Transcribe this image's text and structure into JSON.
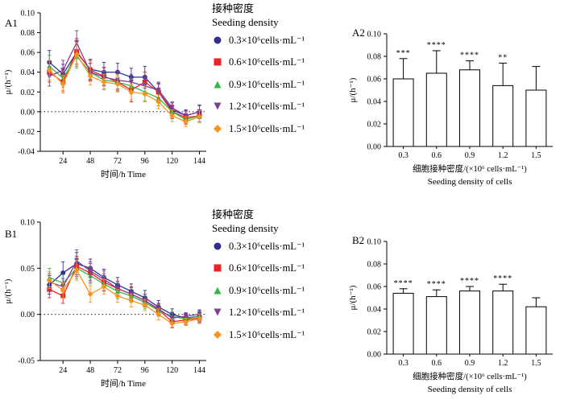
{
  "figure": {
    "background": "#ffffff",
    "legend": {
      "title_zh": "接种密度",
      "title_en": "Seeding density"
    },
    "series_meta": [
      {
        "label": "0.3×10⁶cells·mL⁻¹",
        "color": "#2e3192",
        "marker": "circle"
      },
      {
        "label": "0.6×10⁶cells·mL⁻¹",
        "color": "#ec2227",
        "marker": "square"
      },
      {
        "label": "0.9×10⁶cells·mL⁻¹",
        "color": "#3ab54a",
        "marker": "triangle-up"
      },
      {
        "label": "1.2×10⁶cells·mL⁻¹",
        "color": "#7f3f98",
        "marker": "triangle-down"
      },
      {
        "label": "1.5×10⁶cells·mL⁻¹",
        "color": "#f7941d",
        "marker": "diamond"
      }
    ]
  },
  "chart_data": [
    {
      "id": "A1",
      "type": "line",
      "panel_label": "A1",
      "xlabel": "时间/h Time",
      "ylabel": "μ/(h⁻¹)",
      "xlim": [
        4,
        150
      ],
      "ylim": [
        -0.04,
        0.1
      ],
      "xticks": [
        24,
        48,
        72,
        96,
        120,
        144
      ],
      "yticks": [
        -0.04,
        -0.02,
        0.0,
        0.02,
        0.04,
        0.06,
        0.08,
        0.1
      ],
      "zero_line": true,
      "grid": false,
      "x": [
        12,
        24,
        36,
        48,
        60,
        72,
        84,
        96,
        108,
        120,
        132,
        144
      ],
      "series": [
        {
          "name": "0.3×10⁶cells·mL⁻¹",
          "values": [
            0.05,
            0.038,
            0.06,
            0.043,
            0.04,
            0.04,
            0.035,
            0.035,
            0.02,
            0.002,
            -0.004,
            0.0
          ],
          "errors": [
            0.012,
            0.01,
            0.014,
            0.01,
            0.01,
            0.009,
            0.009,
            0.011,
            0.009,
            0.007,
            0.006,
            0.007
          ]
        },
        {
          "name": "0.6×10⁶cells·mL⁻¹",
          "values": [
            0.04,
            0.03,
            0.061,
            0.042,
            0.036,
            0.03,
            0.022,
            0.03,
            0.02,
            0.0,
            -0.006,
            -0.004
          ],
          "errors": [
            0.01,
            0.009,
            0.013,
            0.01,
            0.009,
            0.009,
            0.012,
            0.01,
            0.008,
            0.007,
            0.006,
            0.006
          ]
        },
        {
          "name": "0.9×10⁶cells·mL⁻¹",
          "values": [
            0.046,
            0.034,
            0.056,
            0.04,
            0.032,
            0.03,
            0.026,
            0.02,
            0.014,
            0.0,
            -0.008,
            -0.004
          ],
          "errors": [
            0.011,
            0.009,
            0.012,
            0.009,
            0.009,
            0.008,
            0.008,
            0.009,
            0.008,
            0.006,
            0.005,
            0.006
          ]
        },
        {
          "name": "1.2×10⁶cells·mL⁻¹",
          "values": [
            0.036,
            0.042,
            0.07,
            0.04,
            0.035,
            0.032,
            0.03,
            0.026,
            0.022,
            0.004,
            -0.004,
            0.0
          ],
          "errors": [
            0.01,
            0.01,
            0.012,
            0.009,
            0.009,
            0.009,
            0.008,
            0.009,
            0.008,
            0.006,
            0.005,
            0.006
          ]
        },
        {
          "name": "1.5×10⁶cells·mL⁻¹",
          "values": [
            0.042,
            0.028,
            0.058,
            0.036,
            0.03,
            0.028,
            0.02,
            0.018,
            0.01,
            -0.004,
            -0.01,
            -0.005
          ],
          "errors": [
            0.01,
            0.009,
            0.012,
            0.009,
            0.008,
            0.008,
            0.008,
            0.008,
            0.007,
            0.006,
            0.005,
            0.006
          ]
        }
      ]
    },
    {
      "id": "A2",
      "type": "bar",
      "panel_label": "A2",
      "xlabel_zh": "细胞接种密度/(×10⁶ cells·mL⁻¹)",
      "xlabel_en": "Seeding density of cells",
      "ylabel": "μ/(h⁻¹)",
      "ylim": [
        0,
        0.1
      ],
      "yticks": [
        0.0,
        0.02,
        0.04,
        0.06,
        0.08,
        0.1
      ],
      "categories": [
        "0.3",
        "0.6",
        "0.9",
        "1.2",
        "1.5"
      ],
      "values": [
        0.06,
        0.065,
        0.068,
        0.054,
        0.05
      ],
      "errors": [
        0.018,
        0.02,
        0.008,
        0.02,
        0.021
      ],
      "significance": [
        "***",
        "****",
        "****",
        "**",
        ""
      ],
      "bar_fill": "#ffffff",
      "bar_stroke": "#000000"
    },
    {
      "id": "B1",
      "type": "line",
      "panel_label": "B1",
      "xlabel": "时间/h Time",
      "ylabel": "μ/(h⁻¹)",
      "xlim": [
        4,
        150
      ],
      "ylim": [
        -0.05,
        0.1
      ],
      "xticks": [
        24,
        48,
        72,
        96,
        120,
        144
      ],
      "yticks": [
        -0.05,
        0.0,
        0.05,
        0.1
      ],
      "zero_line": true,
      "grid": false,
      "x": [
        12,
        24,
        36,
        48,
        60,
        72,
        84,
        96,
        108,
        120,
        132,
        144
      ],
      "series": [
        {
          "name": "0.3×10⁶cells·mL⁻¹",
          "values": [
            0.032,
            0.045,
            0.055,
            0.05,
            0.04,
            0.032,
            0.025,
            0.018,
            0.008,
            0.0,
            -0.004,
            -0.002
          ],
          "errors": [
            0.01,
            0.012,
            0.012,
            0.01,
            0.009,
            0.008,
            0.008,
            0.008,
            0.007,
            0.006,
            0.005,
            0.006
          ]
        },
        {
          "name": "0.6×10⁶cells·mL⁻¹",
          "values": [
            0.027,
            0.02,
            0.052,
            0.045,
            0.035,
            0.028,
            0.022,
            0.015,
            0.005,
            -0.008,
            -0.006,
            -0.004
          ],
          "errors": [
            0.009,
            0.008,
            0.011,
            0.01,
            0.009,
            0.008,
            0.008,
            0.007,
            0.006,
            0.006,
            0.005,
            0.005
          ]
        },
        {
          "name": "0.9×10⁶cells·mL⁻¹",
          "values": [
            0.04,
            0.034,
            0.05,
            0.042,
            0.033,
            0.025,
            0.02,
            0.013,
            0.004,
            -0.002,
            -0.005,
            -0.002
          ],
          "errors": [
            0.01,
            0.009,
            0.011,
            0.009,
            0.008,
            0.008,
            0.007,
            0.007,
            0.006,
            0.005,
            0.005,
            0.005
          ]
        },
        {
          "name": "1.2×10⁶cells·mL⁻¹",
          "values": [
            0.035,
            0.03,
            0.058,
            0.047,
            0.038,
            0.028,
            0.022,
            0.015,
            0.006,
            -0.004,
            -0.002,
            0.0
          ],
          "errors": [
            0.009,
            0.009,
            0.012,
            0.01,
            0.009,
            0.008,
            0.007,
            0.007,
            0.006,
            0.005,
            0.004,
            0.005
          ]
        },
        {
          "name": "1.5×10⁶cells·mL⁻¹",
          "values": [
            0.037,
            0.026,
            0.048,
            0.022,
            0.03,
            0.02,
            0.015,
            0.01,
            0.0,
            -0.01,
            -0.008,
            -0.005
          ],
          "errors": [
            0.009,
            0.008,
            0.011,
            0.009,
            0.008,
            0.007,
            0.007,
            0.006,
            0.006,
            0.005,
            0.004,
            0.005
          ]
        }
      ]
    },
    {
      "id": "B2",
      "type": "bar",
      "panel_label": "B2",
      "xlabel_zh": "细胞接种密度/(×10⁶ cells·mL⁻¹)",
      "xlabel_en": "Seeding density of cells",
      "ylabel": "μ/(h⁻¹)",
      "ylim": [
        0,
        0.1
      ],
      "yticks": [
        0.0,
        0.02,
        0.04,
        0.06,
        0.08,
        0.1
      ],
      "categories": [
        "0.3",
        "0.6",
        "0.9",
        "1.2",
        "1.5"
      ],
      "values": [
        0.054,
        0.051,
        0.056,
        0.056,
        0.042
      ],
      "errors": [
        0.004,
        0.006,
        0.004,
        0.006,
        0.008
      ],
      "significance": [
        "****",
        "****",
        "****",
        "****",
        ""
      ],
      "bar_fill": "#ffffff",
      "bar_stroke": "#000000"
    }
  ]
}
